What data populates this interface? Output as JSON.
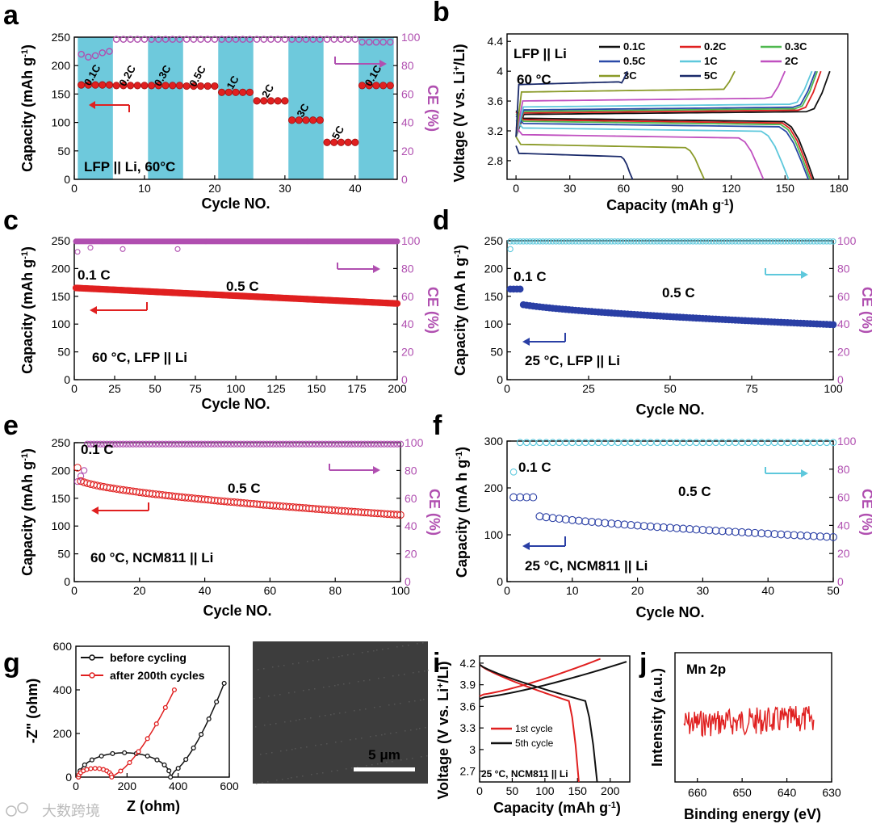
{
  "chart_data": [
    {
      "panel": "a",
      "type": "scatter",
      "xlabel": "Cycle NO.",
      "ylabel": "Capacity (mAh g-1)",
      "ylabel_right": "CE (%)",
      "xlim": [
        0,
        46
      ],
      "ylim": [
        0,
        250
      ],
      "ylim_right": [
        0,
        100
      ],
      "xticks": [
        0,
        10,
        20,
        30,
        40
      ],
      "yticks": [
        0,
        50,
        100,
        150,
        200,
        250
      ],
      "yticks_right": [
        0,
        20,
        40,
        60,
        80,
        100
      ],
      "annotation": "LFP || Li, 60°C",
      "rate_segments": [
        {
          "label": "0.1C",
          "start": 1,
          "end": 5,
          "capacity": 166,
          "shaded": true
        },
        {
          "label": "0.2C",
          "start": 6,
          "end": 10,
          "capacity": 165,
          "shaded": false
        },
        {
          "label": "0.3C",
          "start": 11,
          "end": 15,
          "capacity": 165,
          "shaded": true
        },
        {
          "label": "0.5C",
          "start": 16,
          "end": 20,
          "capacity": 164,
          "shaded": false
        },
        {
          "label": "1C",
          "start": 21,
          "end": 25,
          "capacity": 153,
          "shaded": true
        },
        {
          "label": "2C",
          "start": 26,
          "end": 30,
          "capacity": 138,
          "shaded": false
        },
        {
          "label": "3C",
          "start": 31,
          "end": 35,
          "capacity": 104,
          "shaded": true
        },
        {
          "label": "5C",
          "start": 36,
          "end": 40,
          "capacity": 65,
          "shaded": false
        },
        {
          "label": "0.1C",
          "start": 41,
          "end": 45,
          "capacity": 165,
          "shaded": true
        }
      ],
      "ce_series": {
        "first_values": [
          88,
          86,
          87,
          89,
          90
        ],
        "rest": 98.5
      },
      "colors": {
        "capacity": "#e02020",
        "ce": "#b04fb0",
        "shade": "#5ec3d8"
      }
    },
    {
      "panel": "b",
      "type": "line",
      "xlabel": "Capacity (mAh g-1)",
      "ylabel": "Voltage (V vs. Li+/Li)",
      "xlim": [
        -5,
        185
      ],
      "ylim": [
        2.55,
        4.5
      ],
      "xticks": [
        0,
        30,
        60,
        90,
        120,
        150,
        180
      ],
      "yticks": [
        2.8,
        3.2,
        3.6,
        4.0,
        4.4
      ],
      "annotation": "LFP || Li",
      "annotation2": "60 °C",
      "series": [
        {
          "name": "0.1C",
          "color": "#111111",
          "charge_end": 175,
          "discharge_end": 166,
          "plateau_c": 3.42,
          "plateau_d": 3.37
        },
        {
          "name": "0.2C",
          "color": "#e02020",
          "charge_end": 170,
          "discharge_end": 165,
          "plateau_c": 3.44,
          "plateau_d": 3.35
        },
        {
          "name": "0.3C",
          "color": "#4fb84f",
          "charge_end": 168,
          "discharge_end": 164,
          "plateau_c": 3.46,
          "plateau_d": 3.33
        },
        {
          "name": "0.5C",
          "color": "#2a4aa8",
          "charge_end": 167,
          "discharge_end": 163,
          "plateau_c": 3.48,
          "plateau_d": 3.3
        },
        {
          "name": "1C",
          "color": "#5ec8dc",
          "charge_end": 165,
          "discharge_end": 152,
          "plateau_c": 3.52,
          "plateau_d": 3.24
        },
        {
          "name": "2C",
          "color": "#c050c0",
          "charge_end": 150,
          "discharge_end": 138,
          "plateau_c": 3.6,
          "plateau_d": 3.15
        },
        {
          "name": "3C",
          "color": "#8a9a28",
          "charge_end": 122,
          "discharge_end": 105,
          "plateau_c": 3.72,
          "plateau_d": 3.02
        },
        {
          "name": "5C",
          "color": "#1a2a6a",
          "charge_end": 62,
          "discharge_end": 65,
          "plateau_c": 3.82,
          "plateau_d": 2.9
        }
      ]
    },
    {
      "panel": "c",
      "type": "scatter",
      "xlabel": "Cycle NO.",
      "ylabel": "Capacity (mAh g-1)",
      "ylabel_right": "CE (%)",
      "xlim": [
        0,
        200
      ],
      "ylim": [
        0,
        250
      ],
      "ylim_right": [
        0,
        100
      ],
      "xticks": [
        0,
        25,
        50,
        75,
        100,
        125,
        150,
        175,
        200
      ],
      "yticks": [
        0,
        50,
        100,
        150,
        200,
        250
      ],
      "yticks_right": [
        0,
        20,
        40,
        60,
        80,
        100
      ],
      "annotation": "60 °C, LFP || Li",
      "label_a": "0.1 C",
      "label_b": "0.5 C",
      "capacity": {
        "start": 165,
        "end": 137
      },
      "ce": {
        "value": 99.5
      },
      "colors": {
        "capacity": "#e02020",
        "ce": "#b04fb0"
      }
    },
    {
      "panel": "d",
      "type": "scatter",
      "xlabel": "Cycle NO.",
      "ylabel": "Capacity (mA h g-1)",
      "ylabel_right": "CE (%)",
      "xlim": [
        0,
        100
      ],
      "ylim": [
        0,
        250
      ],
      "ylim_right": [
        0,
        100
      ],
      "xticks": [
        0,
        25,
        50,
        75,
        100
      ],
      "yticks": [
        0,
        50,
        100,
        150,
        200,
        250
      ],
      "yticks_right": [
        0,
        20,
        40,
        60,
        80,
        100
      ],
      "annotation": "25 °C, LFP || Li",
      "label_a": "0.1 C",
      "label_b": "0.5 C",
      "capacity": {
        "first": 163,
        "start": 141,
        "end": 99
      },
      "ce": {
        "value": 99.5
      },
      "colors": {
        "capacity": "#2a3fa5",
        "ce": "#5ec8dc"
      }
    },
    {
      "panel": "e",
      "type": "scatter",
      "xlabel": "Cycle NO.",
      "ylabel": "Capacity (mAh g-1)",
      "ylabel_right": "CE (%)",
      "xlim": [
        0,
        100
      ],
      "ylim": [
        0,
        250
      ],
      "ylim_right": [
        0,
        100
      ],
      "xticks": [
        0,
        20,
        40,
        60,
        80,
        100
      ],
      "yticks": [
        0,
        50,
        100,
        150,
        200,
        250
      ],
      "yticks_right": [
        0,
        20,
        40,
        60,
        80,
        100
      ],
      "annotation": "60 °C, NCM811 || Li",
      "label_a": "0.1 C",
      "label_b": "0.5 C",
      "capacity": {
        "first": 205,
        "start": 185,
        "end": 120
      },
      "ce": {
        "value": 99,
        "first": [
          72,
          76,
          80
        ]
      },
      "colors": {
        "capacity": "#e02020",
        "ce": "#b04fb0"
      }
    },
    {
      "panel": "f",
      "type": "scatter",
      "xlabel": "Cycle NO.",
      "ylabel": "Capacity (mA h g-1)",
      "ylabel_right": "CE (%)",
      "xlim": [
        0,
        50
      ],
      "ylim": [
        0,
        300
      ],
      "ylim_right": [
        0,
        100
      ],
      "xticks": [
        0,
        10,
        20,
        30,
        40,
        50
      ],
      "yticks": [
        0,
        100,
        200,
        300
      ],
      "yticks_right": [
        0,
        20,
        40,
        60,
        80,
        100
      ],
      "annotation": "25 °C, NCM811 || Li",
      "label_a": "0.1 C",
      "label_b": "0.5 C",
      "capacity": {
        "first": 180,
        "start": 152,
        "end": 95
      },
      "ce": {
        "value": 99,
        "first": [
          78
        ]
      },
      "colors": {
        "capacity": "#2a3fa5",
        "ce": "#5ec8dc"
      }
    },
    {
      "panel": "g",
      "type": "line",
      "xlabel": "Z (ohm)",
      "ylabel": "-Z\" (ohm)",
      "xlim": [
        0,
        600
      ],
      "ylim": [
        0,
        600
      ],
      "xticks": [
        0,
        200,
        400,
        600
      ],
      "yticks": [
        0,
        200,
        400,
        600
      ],
      "series": [
        {
          "name": "before cycling",
          "color": "#111111",
          "semicircle_end": 360,
          "tail_end": [
            580,
            430
          ]
        },
        {
          "name": "after 200th cycles",
          "color": "#e02020",
          "semicircle_end": 130,
          "tail_end": [
            385,
            400
          ]
        }
      ]
    },
    {
      "panel": "h",
      "type": "image",
      "scale_bar": "5 μm"
    },
    {
      "panel": "i",
      "type": "line",
      "xlabel": "Capacity (mAh g-1)",
      "ylabel": "Voltage (V vs. Li+/Li)",
      "xlim": [
        0,
        230
      ],
      "ylim": [
        2.55,
        4.3
      ],
      "xticks": [
        0,
        50,
        100,
        150,
        200
      ],
      "yticks": [
        2.7,
        3.0,
        3.3,
        3.6,
        3.9,
        4.2
      ],
      "annotation": "25 °C, NCM811 || Li",
      "series": [
        {
          "name": "1st cycle",
          "color": "#e02020",
          "charge_end": 185,
          "discharge_end": 152
        },
        {
          "name": "5th cycle",
          "color": "#111111",
          "charge_end": 225,
          "discharge_end": 180
        }
      ]
    },
    {
      "panel": "j",
      "type": "line",
      "xlabel": "Binding energy (eV)",
      "ylabel": "Intensity (a.u.)",
      "xlim": [
        665,
        630
      ],
      "xticks": [
        660,
        650,
        640,
        630
      ],
      "annotation": "Mn 2p",
      "series": [
        {
          "name": "Mn 2p",
          "color": "#e02020"
        }
      ]
    }
  ],
  "watermark": "大数跨境"
}
